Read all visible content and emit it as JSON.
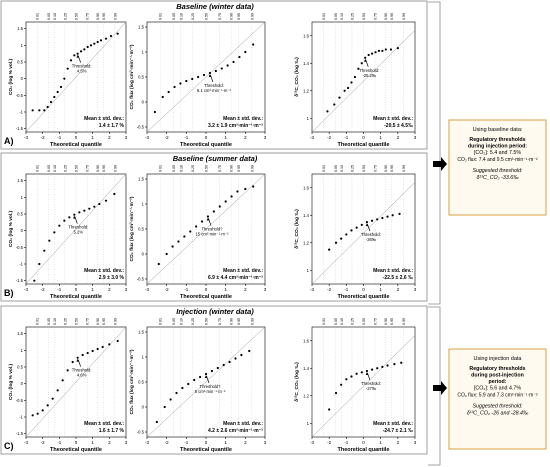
{
  "rows": [
    {
      "tag": "A)",
      "title": "Baseline (winter data)",
      "title_color": "#2233cc",
      "stat_color": "#2233cc"
    },
    {
      "tag": "B)",
      "title": "Baseline (summer data)",
      "title_color": "#cc2222",
      "stat_color": "#cc2222"
    },
    {
      "tag": "C)",
      "title": "Injection (winter data)",
      "title_color": "#2233cc",
      "stat_color": "#2233cc"
    }
  ],
  "common": {
    "xlabel": "Theoretical quantile",
    "ylabel_co2": "CO₂ (log % vol.)",
    "ylabel_flux": "CO₂ flux (log cm³·min⁻¹·m⁻²)",
    "ylabel_iso": "δ¹³C_CO₂ (log ‰)",
    "mean_label": "Mean ± std. dev.:",
    "x_ticks": [
      "-3",
      "-2",
      "-1",
      "0",
      "1",
      "2",
      "3"
    ],
    "top_ticks": [
      "0.01",
      "0.05",
      "0.10",
      "0.25",
      "0.50",
      "0.75",
      "0.90",
      "0.95",
      "0.99"
    ]
  },
  "chart_data": [
    {
      "type": "scatter",
      "panel": "A-CO2",
      "threshold": "Threshold:\n4.5%",
      "stat": "1.4 ± 1.7 %",
      "x": [
        -2.6,
        -2.2,
        -1.9,
        -1.7,
        -1.5,
        -1.3,
        -1.1,
        -0.9,
        -0.7,
        -0.5,
        -0.3,
        -0.1,
        0.1,
        0.3,
        0.5,
        0.7,
        0.9,
        1.1,
        1.3,
        1.5,
        1.8,
        2.1,
        2.5
      ],
      "y": [
        -0.95,
        -0.95,
        -0.95,
        -0.85,
        -0.7,
        -0.55,
        -0.4,
        -0.25,
        0.0,
        0.3,
        0.55,
        0.7,
        0.75,
        0.82,
        0.88,
        0.95,
        1.0,
        1.05,
        1.1,
        1.15,
        1.2,
        1.28,
        1.35
      ]
    },
    {
      "type": "scatter",
      "panel": "A-flux",
      "threshold": "Threshold:\n6.1 cm³·min⁻¹·m⁻²",
      "stat": "3.2 ± 1.9 cm³·min⁻¹·m⁻²",
      "x": [
        -2.6,
        -2.2,
        -1.9,
        -1.6,
        -1.3,
        -1.0,
        -0.7,
        -0.4,
        -0.1,
        0.2,
        0.5,
        0.8,
        1.1,
        1.4,
        1.7,
        2.0,
        2.4
      ],
      "y": [
        -0.2,
        0.1,
        0.2,
        0.3,
        0.37,
        0.42,
        0.46,
        0.5,
        0.54,
        0.58,
        0.62,
        0.67,
        0.73,
        0.8,
        0.9,
        1.0,
        1.15
      ]
    },
    {
      "type": "scatter",
      "panel": "A-iso",
      "threshold": "Threshold:\n-25.2‰",
      "stat": "-20.5 ± 4.5‰",
      "x": [
        -2.1,
        -1.7,
        -1.4,
        -1.1,
        -0.9,
        -0.7,
        -0.5,
        -0.3,
        -0.1,
        0.1,
        0.3,
        0.5,
        0.7,
        0.9,
        1.1,
        1.3,
        1.6,
        2.0
      ],
      "y": [
        1.05,
        1.1,
        1.15,
        1.2,
        1.22,
        1.26,
        1.3,
        1.36,
        1.4,
        1.44,
        1.46,
        1.47,
        1.48,
        1.49,
        1.49,
        1.5,
        1.5,
        1.51
      ]
    },
    {
      "type": "scatter",
      "panel": "B-CO2",
      "threshold": "Threshold:\n5.2%",
      "stat": "2.9 ± 3.0 %",
      "x": [
        -2.5,
        -2.2,
        -1.9,
        -1.6,
        -1.3,
        -1.0,
        -0.7,
        -0.4,
        -0.1,
        0.2,
        0.5,
        0.8,
        1.1,
        1.4,
        1.8,
        2.3
      ],
      "y": [
        -1.5,
        -1.0,
        -0.6,
        -0.3,
        -0.05,
        0.15,
        0.3,
        0.4,
        0.48,
        0.55,
        0.6,
        0.66,
        0.72,
        0.8,
        0.9,
        1.1
      ]
    },
    {
      "type": "scatter",
      "panel": "B-flux",
      "threshold": "Threshold?\n15 cm³·min⁻¹·m⁻²",
      "stat": "6.9 ± 4.4 cm³·min⁻¹·m⁻²",
      "x": [
        -2.4,
        -2.0,
        -1.7,
        -1.4,
        -1.1,
        -0.8,
        -0.5,
        -0.2,
        0.1,
        0.4,
        0.7,
        1.0,
        1.3,
        1.6,
        2.0,
        2.4
      ],
      "y": [
        -0.2,
        0.0,
        0.15,
        0.25,
        0.35,
        0.45,
        0.55,
        0.65,
        0.75,
        0.85,
        0.95,
        1.05,
        1.15,
        1.25,
        1.3,
        1.35
      ]
    },
    {
      "type": "scatter",
      "panel": "B-iso",
      "threshold": "Threshold:\n-26‰",
      "stat": "-22.5 ± 2.6 ‰",
      "x": [
        -2.0,
        -1.6,
        -1.3,
        -1.0,
        -0.7,
        -0.4,
        -0.1,
        0.2,
        0.5,
        0.8,
        1.1,
        1.4,
        1.7,
        2.1
      ],
      "y": [
        1.15,
        1.2,
        1.23,
        1.26,
        1.29,
        1.31,
        1.33,
        1.35,
        1.36,
        1.37,
        1.38,
        1.39,
        1.4,
        1.41
      ]
    },
    {
      "type": "scatter",
      "panel": "C-CO2",
      "threshold": "Threshold:\n4.6%",
      "stat": "1.6 ± 1.7 %",
      "x": [
        -2.6,
        -2.3,
        -2.0,
        -1.7,
        -1.4,
        -1.1,
        -0.8,
        -0.5,
        -0.2,
        0.1,
        0.4,
        0.7,
        1.0,
        1.3,
        1.6,
        2.0,
        2.5
      ],
      "y": [
        -0.95,
        -0.9,
        -0.8,
        -0.65,
        -0.45,
        -0.2,
        0.1,
        0.4,
        0.65,
        0.78,
        0.86,
        0.92,
        0.98,
        1.04,
        1.1,
        1.18,
        1.28
      ]
    },
    {
      "type": "scatter",
      "panel": "C-flux",
      "threshold": "Threshold?\n8 cm³·min⁻¹·m⁻²",
      "stat": "4.2 ± 2.6 cm³·min⁻¹·m⁻²",
      "x": [
        -2.5,
        -2.1,
        -1.8,
        -1.5,
        -1.2,
        -0.9,
        -0.6,
        -0.3,
        0.0,
        0.3,
        0.6,
        0.9,
        1.2,
        1.5,
        1.8,
        2.2
      ],
      "y": [
        -0.3,
        0.0,
        0.15,
        0.28,
        0.38,
        0.46,
        0.54,
        0.6,
        0.66,
        0.72,
        0.78,
        0.84,
        0.9,
        0.97,
        1.04,
        1.12
      ]
    },
    {
      "type": "scatter",
      "panel": "C-iso",
      "threshold": "Threshold:\n-27‰",
      "stat": "-24.7 ± 2.1 ‰",
      "x": [
        -2.0,
        -1.6,
        -1.3,
        -1.0,
        -0.7,
        -0.4,
        -0.1,
        0.2,
        0.5,
        0.8,
        1.1,
        1.4,
        1.8,
        2.2
      ],
      "y": [
        1.1,
        1.22,
        1.28,
        1.32,
        1.34,
        1.36,
        1.37,
        1.38,
        1.39,
        1.4,
        1.41,
        1.42,
        1.43,
        1.44
      ]
    }
  ],
  "callouts": [
    {
      "heading": "Using baseline data:",
      "sub": "Regulatory thresholds during injection period:",
      "line1": "[CO₂]: 5.4 and 7.5%",
      "line2": "CO₂ flux: 7.4 and 9.5 cm³·min⁻¹·m⁻²",
      "sugg": "Suggested threshold:",
      "sugg_val": "δ¹³C_CO₂ -33.6‰"
    },
    {
      "heading": "Using injection data",
      "sub": "Regulatory thresholds during post-injection period:",
      "line1": "[CO₂]: 5.6 and 4.7%",
      "line2": "CO₂ flux: 5.9 and 7.3 cm³·min⁻¹·m⁻²",
      "sugg": "Suggested threshold:",
      "sugg_val": "δ¹³C_CO₂ -26 and -28.4‰"
    }
  ],
  "colors": {
    "callout_border": "#d8a040",
    "callout_text": "#b87820",
    "callout_bg": "#fffaf0"
  }
}
